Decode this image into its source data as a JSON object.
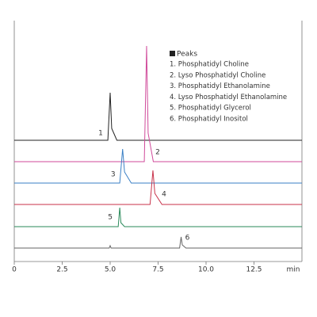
{
  "chart_data": {
    "type": "line",
    "legend_title": "Peaks",
    "xlabel": "min",
    "xlim": [
      0,
      15
    ],
    "xticks": [
      0,
      2.5,
      {
        "value": 5,
        "label": "5.0"
      },
      7.5,
      {
        "value": 10,
        "label": "10.0"
      },
      12.5
    ],
    "series": [
      {
        "name": "1. Phosphatidyl Choline",
        "label": "1",
        "color": "#222222",
        "x": [
          0,
          4.88,
          5.0,
          5.08,
          5.35,
          15
        ],
        "values": [
          0,
          0,
          60,
          15,
          0,
          0
        ]
      },
      {
        "name": "2. Lyso Phosphatidyl Choline",
        "label": "2",
        "color": "#d04a9a",
        "x": [
          0,
          6.78,
          6.9,
          6.98,
          7.25,
          15
        ],
        "values": [
          0,
          0,
          146,
          36,
          0,
          0
        ]
      },
      {
        "name": "3. Phosphatidyl Ethanolamine",
        "label": "3",
        "color": "#3a7fc4",
        "x": [
          0,
          5.5,
          5.65,
          5.75,
          6.1,
          15
        ],
        "values": [
          0,
          0,
          43,
          14,
          0,
          0
        ]
      },
      {
        "name": "4. Lyso Phosphatidyl Ethanolamine",
        "label": "4",
        "color": "#c8324a",
        "x": [
          0,
          7.08,
          7.23,
          7.33,
          7.7,
          15
        ],
        "values": [
          0,
          0,
          43,
          14,
          0,
          0
        ]
      },
      {
        "name": "5. Phosphatidyl Glycerol",
        "label": "5",
        "color": "#2a8a5a",
        "x": [
          0,
          5.42,
          5.5,
          5.56,
          5.75,
          15
        ],
        "values": [
          0,
          0,
          24,
          5,
          0,
          0
        ]
      },
      {
        "name": "6. Phosphatidyl Inositol",
        "label": "6",
        "color": "#666666",
        "x": [
          0,
          4.95,
          5.0,
          5.05,
          8.62,
          8.7,
          8.76,
          8.95,
          15
        ],
        "values": [
          0,
          0,
          3,
          0,
          0,
          14,
          4,
          0,
          0
        ]
      }
    ]
  }
}
